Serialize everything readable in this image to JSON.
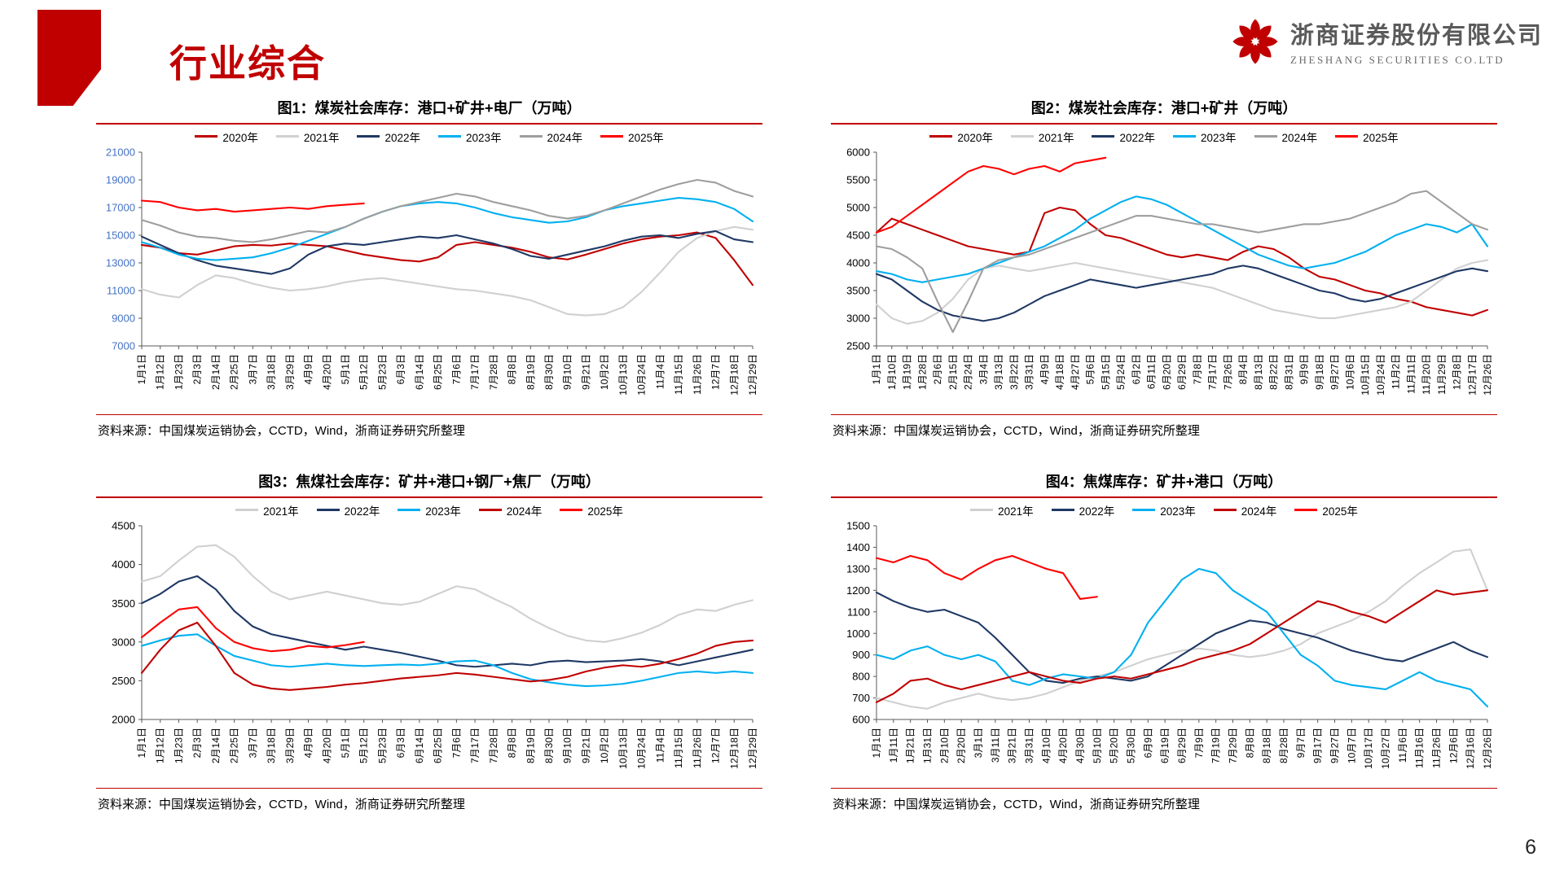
{
  "theme": {
    "accent": "#C00000"
  },
  "header": {
    "title": "行业综合",
    "company_cn": "浙商证券股份有限公司",
    "company_en": "ZHESHANG SECURITIES CO.LTD"
  },
  "footer": {
    "page_number": "6"
  },
  "source_note": "资料来源：中国煤炭运销协会，CCTD，Wind，浙商证券研究所整理",
  "chart_data": [
    {
      "type": "line",
      "title": "图1：煤炭社会库存：港口+矿井+电厂（万吨）",
      "xlabel": "",
      "ylabel": "",
      "ylim": [
        7000,
        21000
      ],
      "ystep": 2000,
      "y_label_color": "#4472C4",
      "legend_position": "top",
      "grid": false,
      "categories": [
        "1月1日",
        "1月12日",
        "1月23日",
        "2月3日",
        "2月14日",
        "2月25日",
        "3月7日",
        "3月18日",
        "3月29日",
        "4月9日",
        "4月20日",
        "5月1日",
        "5月12日",
        "5月23日",
        "6月3日",
        "6月14日",
        "6月25日",
        "7月6日",
        "7月17日",
        "7月28日",
        "8月8日",
        "8月19日",
        "8月30日",
        "9月10日",
        "9月21日",
        "10月2日",
        "10月13日",
        "10月24日",
        "11月4日",
        "11月15日",
        "11月26日",
        "12月7日",
        "12月18日",
        "12月29日"
      ],
      "series": [
        {
          "name": "2020年",
          "color": "#C00000",
          "values": [
            14300,
            14100,
            13700,
            13600,
            13900,
            14200,
            14300,
            14250,
            14400,
            14300,
            14200,
            13900,
            13600,
            13400,
            13200,
            13100,
            13400,
            14300,
            14500,
            14300,
            14100,
            13800,
            13400,
            13250,
            13600,
            14000,
            14400,
            14700,
            14900,
            15000,
            15200,
            14800,
            13200,
            11400
          ]
        },
        {
          "name": "2021年",
          "color": "#D0D0D0",
          "values": [
            11100,
            10700,
            10500,
            11400,
            12100,
            11900,
            11500,
            11200,
            11000,
            11100,
            11300,
            11600,
            11800,
            11900,
            11700,
            11500,
            11300,
            11100,
            11000,
            10800,
            10600,
            10300,
            9800,
            9300,
            9200,
            9300,
            9800,
            10900,
            12300,
            13800,
            14800,
            15300,
            15600,
            15400
          ]
        },
        {
          "name": "2022年",
          "color": "#1F3864",
          "values": [
            14900,
            14300,
            13700,
            13200,
            12800,
            12600,
            12400,
            12200,
            12600,
            13600,
            14200,
            14400,
            14300,
            14500,
            14700,
            14900,
            14800,
            15000,
            14700,
            14400,
            14000,
            13500,
            13300,
            13600,
            13900,
            14200,
            14600,
            14900,
            15000,
            14800,
            15100,
            15300,
            14700,
            14500
          ]
        },
        {
          "name": "2023年",
          "color": "#00B0F0",
          "values": [
            14500,
            14100,
            13600,
            13300,
            13200,
            13300,
            13400,
            13700,
            14100,
            14600,
            15100,
            15600,
            16200,
            16700,
            17100,
            17300,
            17400,
            17300,
            17000,
            16600,
            16300,
            16100,
            15900,
            16000,
            16300,
            16800,
            17100,
            17300,
            17500,
            17700,
            17600,
            17400,
            16900,
            16000
          ]
        },
        {
          "name": "2024年",
          "color": "#9E9E9E",
          "values": [
            16100,
            15700,
            15200,
            14900,
            14800,
            14600,
            14500,
            14700,
            15000,
            15300,
            15200,
            15600,
            16200,
            16700,
            17100,
            17400,
            17700,
            18000,
            17800,
            17400,
            17100,
            16800,
            16400,
            16200,
            16400,
            16800,
            17300,
            17800,
            18300,
            18700,
            19000,
            18800,
            18200,
            17800
          ]
        },
        {
          "name": "2025年",
          "color": "#FF0000",
          "values": [
            17500,
            17400,
            17000,
            16800,
            16900,
            16700,
            16800,
            16900,
            17000,
            16900,
            17100,
            17200,
            17300
          ]
        }
      ]
    },
    {
      "type": "line",
      "title": "图2：煤炭社会库存：港口+矿井（万吨）",
      "xlabel": "",
      "ylabel": "",
      "ylim": [
        2500,
        6000
      ],
      "ystep": 500,
      "y_label_color": "#000000",
      "legend_position": "top",
      "grid": false,
      "categories": [
        "1月1日",
        "1月10日",
        "1月19日",
        "1月28日",
        "2月6日",
        "2月15日",
        "2月24日",
        "3月4日",
        "3月13日",
        "3月22日",
        "3月31日",
        "4月9日",
        "4月18日",
        "4月27日",
        "5月6日",
        "5月15日",
        "5月24日",
        "6月2日",
        "6月11日",
        "6月20日",
        "6月29日",
        "7月8日",
        "7月17日",
        "7月26日",
        "8月4日",
        "8月13日",
        "8月22日",
        "8月31日",
        "9月9日",
        "9月18日",
        "9月27日",
        "10月6日",
        "10月15日",
        "10月24日",
        "11月2日",
        "11月11日",
        "11月20日",
        "11月29日",
        "12月8日",
        "12月17日",
        "12月26日"
      ],
      "series": [
        {
          "name": "2020年",
          "color": "#C00000",
          "values": [
            4550,
            4800,
            4700,
            4600,
            4500,
            4400,
            4300,
            4250,
            4200,
            4150,
            4200,
            4900,
            5000,
            4950,
            4700,
            4500,
            4450,
            4350,
            4250,
            4150,
            4100,
            4150,
            4100,
            4050,
            4200,
            4300,
            4250,
            4100,
            3900,
            3750,
            3700,
            3600,
            3500,
            3450,
            3350,
            3300,
            3200,
            3150,
            3100,
            3050,
            3150
          ]
        },
        {
          "name": "2021年",
          "color": "#D0D0D0",
          "values": [
            3250,
            3000,
            2900,
            2950,
            3100,
            3350,
            3700,
            3900,
            3950,
            3900,
            3850,
            3900,
            3950,
            4000,
            3950,
            3900,
            3850,
            3800,
            3750,
            3700,
            3650,
            3600,
            3550,
            3450,
            3350,
            3250,
            3150,
            3100,
            3050,
            3000,
            3000,
            3050,
            3100,
            3150,
            3200,
            3300,
            3500,
            3700,
            3900,
            4000,
            4050
          ]
        },
        {
          "name": "2022年",
          "color": "#1F3864",
          "values": [
            3800,
            3700,
            3500,
            3300,
            3150,
            3050,
            3000,
            2950,
            3000,
            3100,
            3250,
            3400,
            3500,
            3600,
            3700,
            3650,
            3600,
            3550,
            3600,
            3650,
            3700,
            3750,
            3800,
            3900,
            3950,
            3900,
            3800,
            3700,
            3600,
            3500,
            3450,
            3350,
            3300,
            3350,
            3450,
            3550,
            3650,
            3750,
            3850,
            3900,
            3850
          ]
        },
        {
          "name": "2023年",
          "color": "#00B0F0",
          "values": [
            3850,
            3800,
            3700,
            3650,
            3700,
            3750,
            3800,
            3900,
            4000,
            4100,
            4200,
            4300,
            4450,
            4600,
            4800,
            4950,
            5100,
            5200,
            5150,
            5050,
            4900,
            4750,
            4600,
            4450,
            4300,
            4150,
            4050,
            3950,
            3900,
            3950,
            4000,
            4100,
            4200,
            4350,
            4500,
            4600,
            4700,
            4650,
            4550,
            4700,
            4300
          ]
        },
        {
          "name": "2024年",
          "color": "#9E9E9E",
          "values": [
            4300,
            4250,
            4100,
            3900,
            3300,
            2750,
            3300,
            3900,
            4050,
            4100,
            4150,
            4250,
            4350,
            4450,
            4550,
            4650,
            4750,
            4850,
            4850,
            4800,
            4750,
            4700,
            4700,
            4650,
            4600,
            4550,
            4600,
            4650,
            4700,
            4700,
            4750,
            4800,
            4900,
            5000,
            5100,
            5250,
            5300,
            5100,
            4900,
            4700,
            4600
          ]
        },
        {
          "name": "2025年",
          "color": "#FF0000",
          "values": [
            4550,
            4650,
            4850,
            5050,
            5250,
            5450,
            5650,
            5750,
            5700,
            5600,
            5700,
            5750,
            5650,
            5800,
            5850,
            5900
          ]
        }
      ]
    },
    {
      "type": "line",
      "title": "图3：焦煤社会库存：矿井+港口+钢厂+焦厂（万吨）",
      "xlabel": "",
      "ylabel": "",
      "ylim": [
        2000,
        4500
      ],
      "ystep": 500,
      "y_label_color": "#000000",
      "legend_position": "top",
      "grid": false,
      "categories": [
        "1月1日",
        "1月12日",
        "1月23日",
        "2月3日",
        "2月14日",
        "2月25日",
        "3月7日",
        "3月18日",
        "3月29日",
        "4月9日",
        "4月20日",
        "5月1日",
        "5月12日",
        "5月23日",
        "6月3日",
        "6月14日",
        "6月25日",
        "7月6日",
        "7月17日",
        "7月28日",
        "8月8日",
        "8月19日",
        "8月30日",
        "9月10日",
        "9月21日",
        "10月2日",
        "10月13日",
        "10月24日",
        "11月4日",
        "11月15日",
        "11月26日",
        "12月7日",
        "12月18日",
        "12月29日"
      ],
      "series": [
        {
          "name": "2021年",
          "color": "#D0D0D0",
          "values": [
            3780,
            3850,
            4050,
            4230,
            4250,
            4100,
            3850,
            3650,
            3550,
            3600,
            3650,
            3600,
            3550,
            3500,
            3480,
            3520,
            3620,
            3720,
            3680,
            3560,
            3450,
            3300,
            3180,
            3080,
            3020,
            3000,
            3050,
            3120,
            3220,
            3350,
            3420,
            3400,
            3480,
            3540
          ]
        },
        {
          "name": "2022年",
          "color": "#1F3864",
          "values": [
            3500,
            3620,
            3780,
            3850,
            3680,
            3400,
            3200,
            3100,
            3050,
            3000,
            2950,
            2900,
            2940,
            2900,
            2860,
            2810,
            2760,
            2700,
            2680,
            2700,
            2720,
            2700,
            2745,
            2760,
            2740,
            2750,
            2760,
            2780,
            2750,
            2700,
            2750,
            2800,
            2850,
            2900
          ]
        },
        {
          "name": "2023年",
          "color": "#00B0F0",
          "values": [
            2950,
            3020,
            3080,
            3100,
            2950,
            2820,
            2760,
            2700,
            2680,
            2700,
            2720,
            2700,
            2690,
            2700,
            2710,
            2700,
            2720,
            2750,
            2760,
            2700,
            2600,
            2520,
            2480,
            2450,
            2430,
            2440,
            2460,
            2500,
            2550,
            2600,
            2620,
            2600,
            2620,
            2600
          ]
        },
        {
          "name": "2024年",
          "color": "#C00000",
          "values": [
            2600,
            2900,
            3150,
            3250,
            2950,
            2600,
            2450,
            2400,
            2380,
            2400,
            2420,
            2450,
            2470,
            2500,
            2530,
            2550,
            2570,
            2600,
            2580,
            2550,
            2520,
            2490,
            2510,
            2550,
            2620,
            2670,
            2700,
            2680,
            2720,
            2780,
            2850,
            2950,
            3000,
            3020
          ]
        },
        {
          "name": "2025年",
          "color": "#FF0000",
          "values": [
            3060,
            3250,
            3420,
            3450,
            3180,
            3000,
            2920,
            2880,
            2900,
            2950,
            2930,
            2960,
            3000
          ]
        }
      ]
    },
    {
      "type": "line",
      "title": "图4：焦煤库存：矿井+港口（万吨）",
      "xlabel": "",
      "ylabel": "",
      "ylim": [
        600,
        1500
      ],
      "ystep": 100,
      "y_label_color": "#000000",
      "legend_position": "top",
      "grid": false,
      "categories": [
        "1月1日",
        "1月11日",
        "1月21日",
        "1月31日",
        "2月10日",
        "2月20日",
        "3月1日",
        "3月11日",
        "3月21日",
        "3月31日",
        "4月10日",
        "4月20日",
        "4月30日",
        "5月10日",
        "5月20日",
        "5月30日",
        "6月9日",
        "6月19日",
        "6月29日",
        "7月9日",
        "7月19日",
        "7月29日",
        "8月8日",
        "8月18日",
        "8月28日",
        "9月7日",
        "9月17日",
        "9月27日",
        "10月7日",
        "10月17日",
        "10月27日",
        "11月6日",
        "11月16日",
        "11月26日",
        "12月6日",
        "12月16日",
        "12月26日"
      ],
      "series": [
        {
          "name": "2021年",
          "color": "#D0D0D0",
          "values": [
            700,
            680,
            660,
            650,
            680,
            700,
            720,
            700,
            690,
            700,
            720,
            750,
            780,
            800,
            820,
            850,
            880,
            900,
            920,
            930,
            920,
            900,
            890,
            900,
            920,
            950,
            1000,
            1030,
            1060,
            1100,
            1150,
            1220,
            1280,
            1330,
            1380,
            1390,
            1200
          ]
        },
        {
          "name": "2022年",
          "color": "#1F3864",
          "values": [
            1190,
            1150,
            1120,
            1100,
            1110,
            1080,
            1050,
            980,
            900,
            820,
            780,
            770,
            790,
            800,
            790,
            780,
            800,
            850,
            900,
            950,
            1000,
            1030,
            1060,
            1050,
            1020,
            1000,
            980,
            950,
            920,
            900,
            880,
            870,
            900,
            930,
            960,
            920,
            890
          ]
        },
        {
          "name": "2023年",
          "color": "#00B0F0",
          "values": [
            900,
            880,
            920,
            940,
            900,
            880,
            900,
            870,
            780,
            760,
            790,
            810,
            800,
            790,
            820,
            900,
            1050,
            1150,
            1250,
            1300,
            1280,
            1200,
            1150,
            1100,
            1000,
            900,
            850,
            780,
            760,
            750,
            740,
            780,
            820,
            780,
            760,
            740,
            660
          ]
        },
        {
          "name": "2024年",
          "color": "#C00000",
          "values": [
            680,
            720,
            780,
            790,
            760,
            740,
            760,
            780,
            800,
            820,
            800,
            780,
            770,
            790,
            800,
            790,
            810,
            830,
            850,
            880,
            900,
            920,
            950,
            1000,
            1050,
            1100,
            1150,
            1130,
            1100,
            1080,
            1050,
            1100,
            1150,
            1200,
            1180,
            1190,
            1200
          ]
        },
        {
          "name": "2025年",
          "color": "#FF0000",
          "values": [
            1350,
            1330,
            1360,
            1340,
            1280,
            1250,
            1300,
            1340,
            1360,
            1330,
            1300,
            1280,
            1160,
            1170
          ]
        }
      ]
    }
  ]
}
